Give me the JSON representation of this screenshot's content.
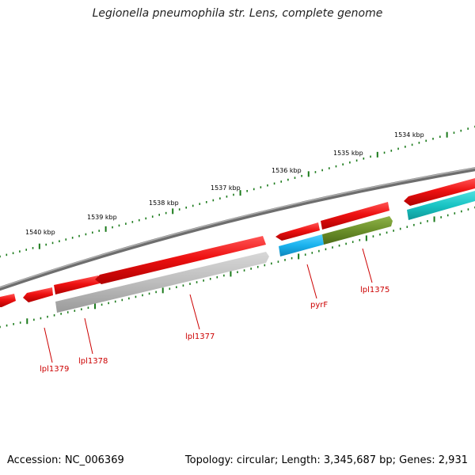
{
  "title": "Legionella pneumophila str. Lens, complete genome",
  "footer": {
    "accession": "Accession: NC_006369",
    "topology": "Topology: circular; Length: 3,345,687 bp; Genes: 2,931"
  },
  "colors": {
    "backbone": "#8a8a8a",
    "tick": "#1a7a1a",
    "gene_red": "#ee1111",
    "gene_grey": "#bdbdbd",
    "gene_cyan": "#1ab2ee",
    "gene_teal": "#19c4c4",
    "gene_olive": "#6b8f2a",
    "label_red": "#cc0000"
  },
  "scale_labels": [
    "1540 kbp",
    "1539 kbp",
    "1538 kbp",
    "1537 kbp",
    "1536 kbp",
    "1535 kbp",
    "1534 kbp"
  ],
  "gene_labels": [
    "lpl1379",
    "lpl1378",
    "lpl1377",
    "pyrF",
    "lpl1375"
  ]
}
